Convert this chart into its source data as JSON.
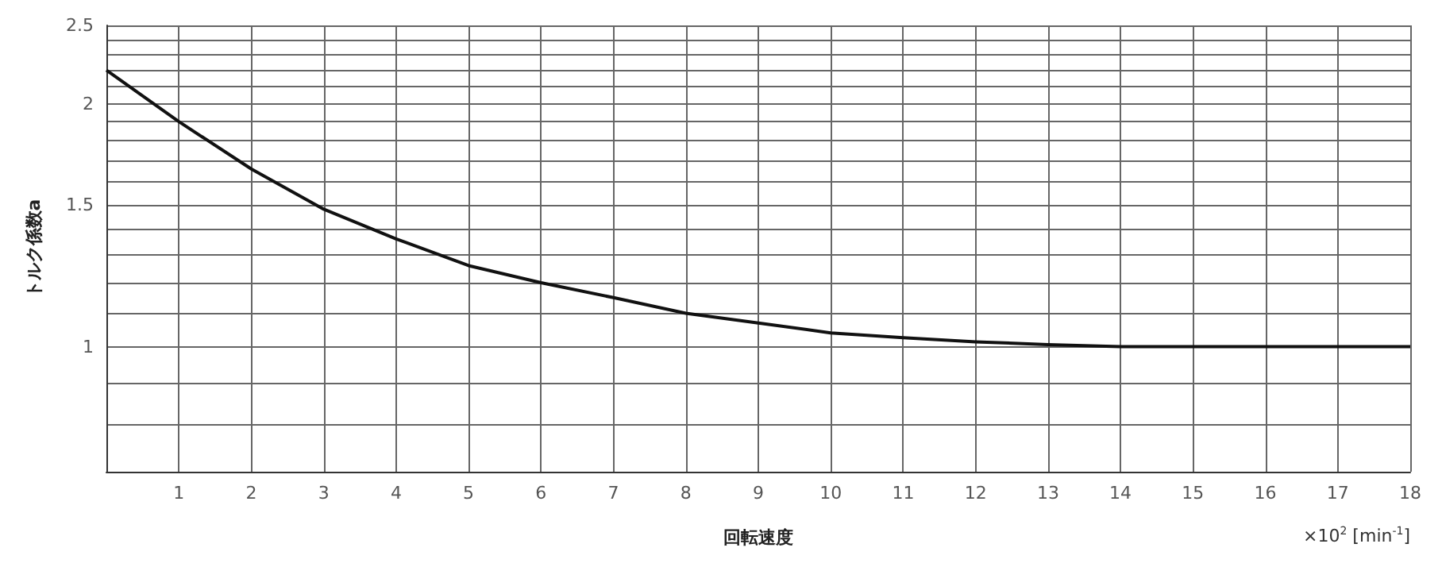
{
  "chart_data": {
    "type": "line",
    "xlabel": "回転速度",
    "ylabel": "トルク係数a",
    "annotations": [
      "×10$^{2}$ [min$^{-1}$]"
    ],
    "log": "y",
    "grid": true,
    "marker": "none",
    "line_style": "solid",
    "xlim": [
      0,
      18
    ],
    "ylim": [
      0.7,
      2.5
    ],
    "xticks": [
      {
        "value": 0,
        "label": null
      },
      1,
      2,
      3,
      4,
      5,
      6,
      7,
      8,
      9,
      10,
      11,
      12,
      13,
      14,
      15,
      16,
      17,
      18
    ],
    "yticks": [
      {
        "value": 0.7,
        "label": null
      },
      {
        "value": 0.8,
        "label": null
      },
      {
        "value": 0.9,
        "label": null
      },
      1,
      {
        "value": 1.1,
        "label": null
      },
      {
        "value": 1.2,
        "label": null
      },
      {
        "value": 1.3,
        "label": null
      },
      {
        "value": 1.4,
        "label": null
      },
      1.5,
      {
        "value": 1.6,
        "label": null
      },
      {
        "value": 1.7,
        "label": null
      },
      {
        "value": 1.8,
        "label": null
      },
      {
        "value": 1.9,
        "label": null
      },
      2,
      {
        "value": 2.1,
        "label": null
      },
      {
        "value": 2.2,
        "label": null
      },
      {
        "value": 2.3,
        "label": null
      },
      {
        "value": 2.4,
        "label": null
      },
      2.5
    ],
    "x": [
      0,
      1,
      2,
      3,
      4,
      5,
      6,
      7,
      8,
      9,
      10,
      11,
      12,
      13,
      14,
      15,
      16,
      17,
      18
    ],
    "series": [
      {
        "color": "#111111",
        "values": [
          2.2,
          1.9,
          1.66,
          1.48,
          1.36,
          1.26,
          1.2,
          1.15,
          1.1,
          1.07,
          1.04,
          1.026,
          1.014,
          1.006,
          1.0,
          1.0,
          1.0,
          1.0,
          1.0
        ]
      }
    ]
  }
}
